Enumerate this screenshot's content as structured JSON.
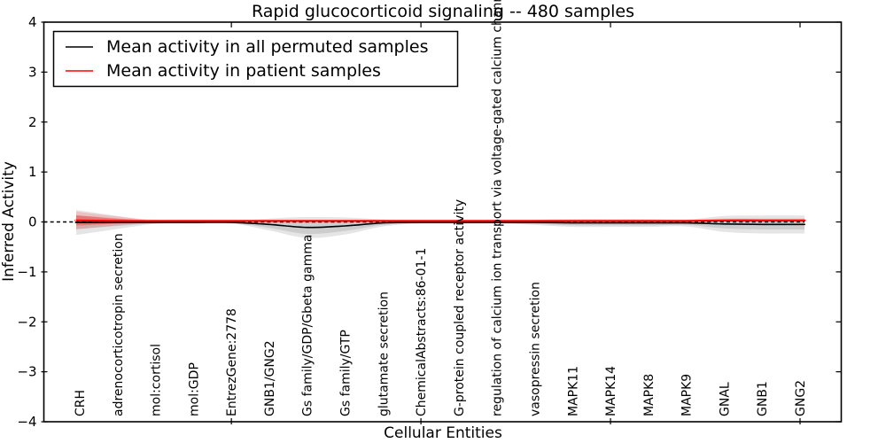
{
  "title": "Rapid glucocorticoid signaling -- 480 samples",
  "axes": {
    "xlabel": "Cellular Entities",
    "ylabel": "Inferred Activity"
  },
  "legend": {
    "items": [
      {
        "label": "Mean activity in all permuted samples",
        "color": "#000000"
      },
      {
        "label": "Mean activity in patient samples",
        "color": "#ff0000"
      }
    ]
  },
  "colors": {
    "permuted_line": "#000000",
    "patient_line": "#ff0000",
    "permuted_band": "rgba(0,0,0,0.10)",
    "patient_band_outer": "rgba(255,0,0,0.15)",
    "patient_band_inner": "rgba(255,0,0,0.30)",
    "zero_line": "#000000"
  },
  "chart_data": {
    "type": "line",
    "title": "Rapid glucocorticoid signaling -- 480 samples",
    "xlabel": "Cellular Entities",
    "ylabel": "Inferred Activity",
    "ylim": [
      -4,
      4
    ],
    "yticks": [
      -4,
      -3,
      -2,
      -1,
      0,
      1,
      2,
      3,
      4
    ],
    "ytick_labels": [
      "−4",
      "−3",
      "−2",
      "−1",
      "0",
      "1",
      "2",
      "3",
      "4"
    ],
    "xtick_indices": [
      4,
      9,
      14,
      19
    ],
    "grid": false,
    "legend_position": "upper left",
    "zero_line": {
      "style": "dashed",
      "color": "#000000",
      "y": 0
    },
    "categories": [
      "CRH",
      "adrenocorticotropin secretion",
      "mol:cortisol",
      "mol:GDP",
      "EntrezGene:2778",
      "GNB1/GNG2",
      "Gs family/GDP/Gbeta gamma",
      "Gs family/GTP",
      "glutamate secretion",
      "ChemicalAbstracts:86-01-1",
      "G-protein coupled receptor activity",
      "regulation of calcium ion transport via voltage-gated calcium chann",
      "vasopressin secretion",
      "MAPK11",
      "MAPK14",
      "MAPK8",
      "MAPK9",
      "GNAL",
      "GNB1",
      "GNG2"
    ],
    "series": [
      {
        "name": "Mean activity in all permuted samples",
        "color": "#000000",
        "values": [
          -0.01,
          -0.01,
          -0.01,
          -0.01,
          -0.01,
          -0.05,
          -0.11,
          -0.08,
          -0.02,
          -0.01,
          -0.01,
          -0.01,
          -0.01,
          -0.02,
          -0.02,
          -0.02,
          -0.02,
          -0.04,
          -0.05,
          -0.05
        ],
        "band_inner": [
          0.13,
          0.07,
          0.02,
          0.01,
          0.01,
          0.07,
          0.13,
          0.1,
          0.04,
          0.01,
          0.01,
          0.01,
          0.03,
          0.05,
          0.05,
          0.05,
          0.04,
          0.09,
          0.1,
          0.1
        ],
        "band_outer": [
          0.24,
          0.13,
          0.03,
          0.02,
          0.02,
          0.12,
          0.21,
          0.17,
          0.07,
          0.02,
          0.02,
          0.02,
          0.05,
          0.08,
          0.08,
          0.08,
          0.07,
          0.16,
          0.18,
          0.18
        ]
      },
      {
        "name": "Mean activity in patient samples",
        "color": "#ff0000",
        "values": [
          0.03,
          0.02,
          0.02,
          0.02,
          0.02,
          0.02,
          0.02,
          0.02,
          0.02,
          0.02,
          0.02,
          0.02,
          0.02,
          0.02,
          0.02,
          0.02,
          0.02,
          0.03,
          0.03,
          0.03
        ],
        "band_inner": [
          0.1,
          0.05,
          0.01,
          0.01,
          0.01,
          0.01,
          0.01,
          0.01,
          0.01,
          0.01,
          0.01,
          0.01,
          0.01,
          0.01,
          0.01,
          0.01,
          0.01,
          0.02,
          0.02,
          0.02
        ],
        "band_outer": [
          0.17,
          0.09,
          0.02,
          0.02,
          0.02,
          0.02,
          0.02,
          0.02,
          0.02,
          0.02,
          0.02,
          0.02,
          0.02,
          0.02,
          0.02,
          0.02,
          0.02,
          0.04,
          0.04,
          0.04
        ]
      }
    ]
  }
}
